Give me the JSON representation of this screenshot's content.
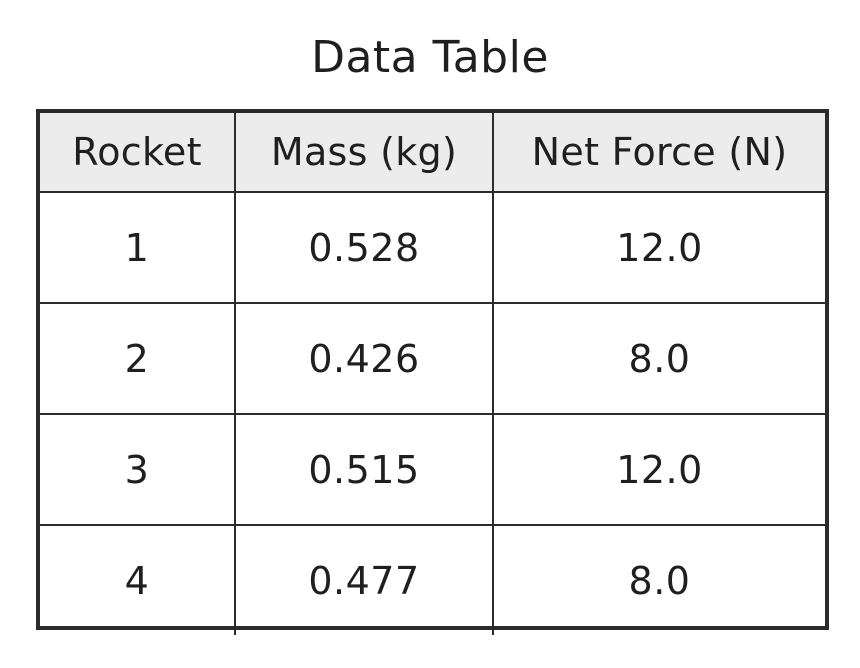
{
  "title": "Data Table",
  "table": {
    "headers": [
      "Rocket",
      "Mass (kg)",
      "Net Force (N)"
    ],
    "rows": [
      [
        "1",
        "0.528",
        "12.0"
      ],
      [
        "2",
        "0.426",
        "8.0"
      ],
      [
        "3",
        "0.515",
        "12.0"
      ],
      [
        "4",
        "0.477",
        "8.0"
      ]
    ]
  }
}
